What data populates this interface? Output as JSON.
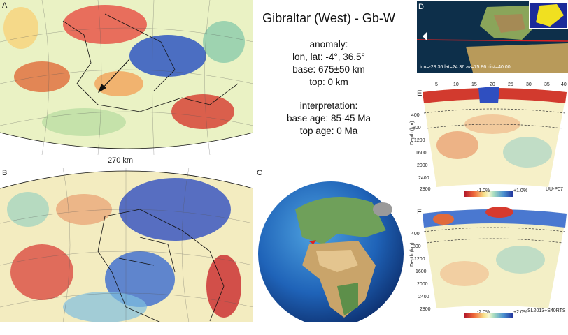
{
  "panel_labels": {
    "a": "A",
    "b": "B",
    "c": "C",
    "d": "D",
    "e": "E",
    "f": "F"
  },
  "scale_label": "270 km",
  "title": "Gibraltar (West) - Gb-W",
  "anomaly": {
    "heading": "anomaly:",
    "lonlat": "lon, lat: -4°, 36.5°",
    "base": "base: 675±50 km",
    "top": "top: 0 km"
  },
  "interpretation": {
    "heading": "interpretation:",
    "base_age": "base age: 85-45 Ma",
    "top_age": "top age: 0 Ma"
  },
  "map_d_caption": "lon=-28.36 lat=24.36 az=75.86 dist=40.00",
  "section_e": {
    "ticks": [
      "5",
      "10",
      "15",
      "20",
      "25",
      "30",
      "35",
      "40"
    ],
    "depth_label": "Depth (km)",
    "depths": [
      "400",
      "800",
      "1200",
      "1600",
      "2000",
      "2400",
      "2800"
    ],
    "colorbar_min": "-1.0%",
    "colorbar_max": "+1.0%",
    "model": "UU-P07"
  },
  "section_f": {
    "depth_label": "Depth (km)",
    "depths": [
      "400",
      "800",
      "1200",
      "1600",
      "2000",
      "2400",
      "2800"
    ],
    "colorbar_min": "-2.0%",
    "colorbar_max": "+2.0%",
    "model": "SL2013+S40RTS"
  },
  "colors": {
    "fast": "#1f3fb0",
    "slow": "#c8281e",
    "neutral": "#f4efc0",
    "land": "#cfe6c0"
  }
}
